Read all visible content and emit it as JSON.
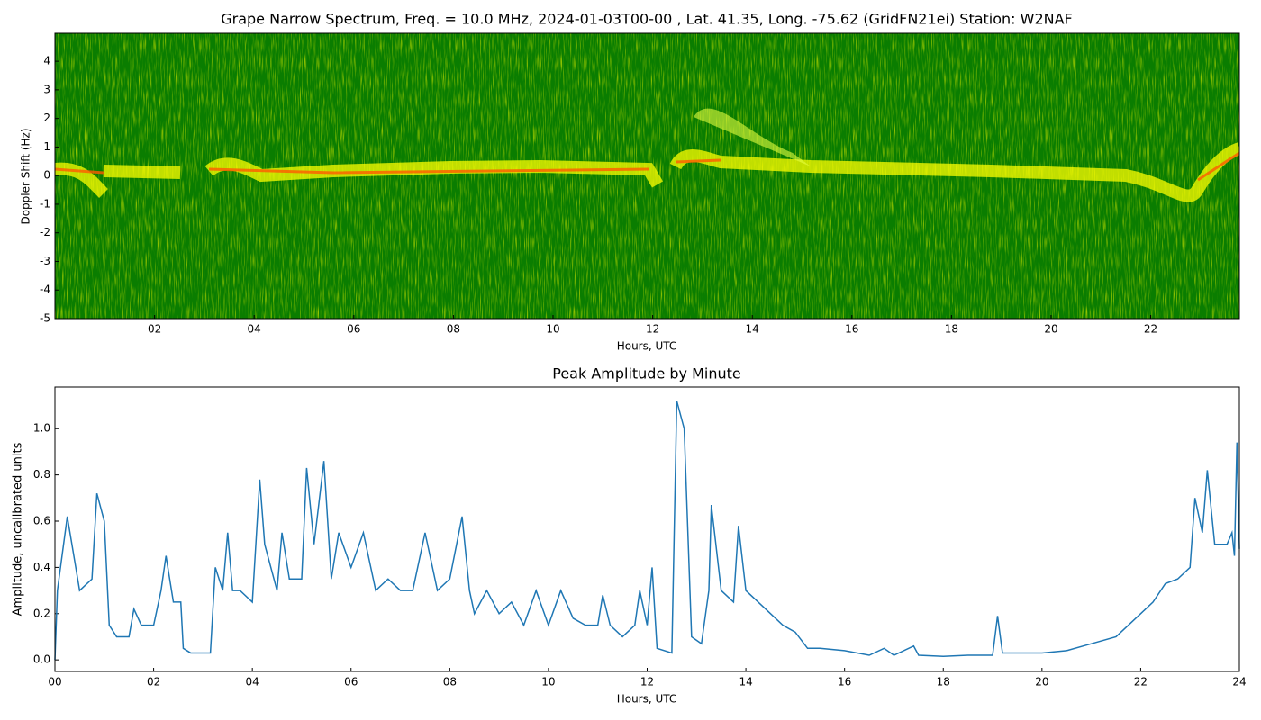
{
  "chart_data": [
    {
      "type": "spectrogram",
      "title": "Grape Narrow Spectrum, Freq. = 10.0 MHz, 2024-01-03T00-00 , Lat.  41.35, Long. -75.62 (GridFN21ei) Station: W2NAF",
      "x_label": "Hours, UTC",
      "y_label": "Doppler Shift (Hz)",
      "xlim": [
        0,
        23.78
      ],
      "ylim": [
        -5,
        4.98
      ],
      "xticks": [
        {
          "value": 2,
          "label": "02"
        },
        {
          "value": 4,
          "label": "04"
        },
        {
          "value": 6,
          "label": "06"
        },
        {
          "value": 8,
          "label": "08"
        },
        {
          "value": 10,
          "label": "10"
        },
        {
          "value": 12,
          "label": "12"
        },
        {
          "value": 14,
          "label": "14"
        },
        {
          "value": 16,
          "label": "16"
        },
        {
          "value": 18,
          "label": "18"
        },
        {
          "value": 20,
          "label": "20"
        },
        {
          "value": 22,
          "label": "22"
        }
      ],
      "yticks": [
        -5,
        -4,
        -3,
        -2,
        -1,
        0,
        1,
        2,
        3,
        4
      ]
    },
    {
      "type": "line",
      "title": "Peak Amplitude by Minute",
      "x_label": "Hours, UTC",
      "y_label": "Amplitude, uncalibrated units",
      "color": "#1f77b4",
      "xlim": [
        0,
        24
      ],
      "ylim": [
        -0.05,
        1.18
      ],
      "xticks": [
        {
          "value": 0,
          "label": "00"
        },
        {
          "value": 2,
          "label": "02"
        },
        {
          "value": 4,
          "label": "04"
        },
        {
          "value": 6,
          "label": "06"
        },
        {
          "value": 8,
          "label": "08"
        },
        {
          "value": 10,
          "label": "10"
        },
        {
          "value": 12,
          "label": "12"
        },
        {
          "value": 14,
          "label": "14"
        },
        {
          "value": 16,
          "label": "16"
        },
        {
          "value": 18,
          "label": "18"
        },
        {
          "value": 20,
          "label": "20"
        },
        {
          "value": 22,
          "label": "22"
        },
        {
          "value": 24,
          "label": "24"
        }
      ],
      "yticks": [
        {
          "value": 0,
          "label": "0.0"
        },
        0.2,
        0.4,
        0.6,
        0.8,
        {
          "value": 1,
          "label": "1.0"
        }
      ],
      "x": [
        0,
        0.05,
        0.25,
        0.5,
        0.75,
        0.85,
        1.0,
        1.1,
        1.25,
        1.5,
        1.6,
        1.75,
        2.0,
        2.15,
        2.25,
        2.4,
        2.55,
        2.6,
        2.75,
        3.0,
        3.15,
        3.25,
        3.4,
        3.5,
        3.6,
        3.75,
        4.0,
        4.15,
        4.25,
        4.5,
        4.6,
        4.75,
        5.0,
        5.1,
        5.25,
        5.45,
        5.6,
        5.75,
        6.0,
        6.25,
        6.5,
        6.75,
        7.0,
        7.25,
        7.5,
        7.75,
        8.0,
        8.25,
        8.4,
        8.5,
        8.75,
        9.0,
        9.25,
        9.5,
        9.75,
        10.0,
        10.25,
        10.5,
        10.75,
        11.0,
        11.1,
        11.25,
        11.5,
        11.75,
        11.85,
        12.0,
        12.1,
        12.2,
        12.5,
        12.6,
        12.75,
        12.9,
        13.1,
        13.25,
        13.3,
        13.5,
        13.75,
        13.85,
        14.0,
        14.25,
        14.5,
        14.75,
        15.0,
        15.25,
        15.5,
        16.0,
        16.5,
        16.8,
        17.0,
        17.4,
        17.5,
        18.0,
        18.5,
        19.0,
        19.1,
        19.2,
        19.5,
        20.0,
        20.5,
        21.0,
        21.5,
        22.0,
        22.25,
        22.5,
        22.75,
        23.0,
        23.1,
        23.25,
        23.35,
        23.5,
        23.75,
        23.85,
        23.9,
        23.95,
        24.0
      ],
      "values": [
        0.0,
        0.3,
        0.62,
        0.3,
        0.35,
        0.72,
        0.6,
        0.15,
        0.1,
        0.1,
        0.22,
        0.15,
        0.15,
        0.3,
        0.45,
        0.25,
        0.25,
        0.05,
        0.03,
        0.03,
        0.03,
        0.4,
        0.3,
        0.55,
        0.3,
        0.3,
        0.25,
        0.78,
        0.5,
        0.3,
        0.55,
        0.35,
        0.35,
        0.83,
        0.5,
        0.86,
        0.35,
        0.55,
        0.4,
        0.55,
        0.3,
        0.35,
        0.3,
        0.3,
        0.55,
        0.3,
        0.35,
        0.62,
        0.3,
        0.2,
        0.3,
        0.2,
        0.25,
        0.15,
        0.3,
        0.15,
        0.3,
        0.18,
        0.15,
        0.15,
        0.28,
        0.15,
        0.1,
        0.15,
        0.3,
        0.15,
        0.4,
        0.05,
        0.03,
        1.12,
        1.0,
        0.1,
        0.07,
        0.3,
        0.67,
        0.3,
        0.25,
        0.58,
        0.3,
        0.25,
        0.2,
        0.15,
        0.12,
        0.05,
        0.05,
        0.04,
        0.02,
        0.05,
        0.02,
        0.06,
        0.02,
        0.015,
        0.02,
        0.02,
        0.19,
        0.03,
        0.03,
        0.03,
        0.04,
        0.07,
        0.1,
        0.2,
        0.25,
        0.33,
        0.35,
        0.4,
        0.7,
        0.55,
        0.82,
        0.5,
        0.5,
        0.55,
        0.45,
        0.94,
        0.48
      ]
    }
  ]
}
